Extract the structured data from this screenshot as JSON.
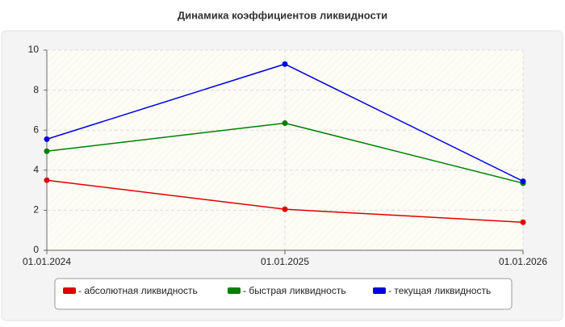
{
  "chart_data": {
    "type": "line",
    "title": "Динамика коэффициентов ликвидности",
    "categories": [
      "01.01.2024",
      "01.01.2025",
      "01.01.2026"
    ],
    "series": [
      {
        "name": "- абсолютная ликвидность",
        "color": "#e00000",
        "values": [
          3.5,
          2.05,
          1.4
        ]
      },
      {
        "name": "- быстрая ликвидность",
        "color": "#008000",
        "values": [
          4.95,
          6.35,
          3.35
        ]
      },
      {
        "name": "- текущая ликвидность",
        "color": "#0000e0",
        "values": [
          5.55,
          9.3,
          3.45
        ]
      }
    ],
    "ylim": [
      0,
      10
    ],
    "yticks": [
      0,
      2,
      4,
      6,
      8,
      10
    ],
    "grid": true
  }
}
